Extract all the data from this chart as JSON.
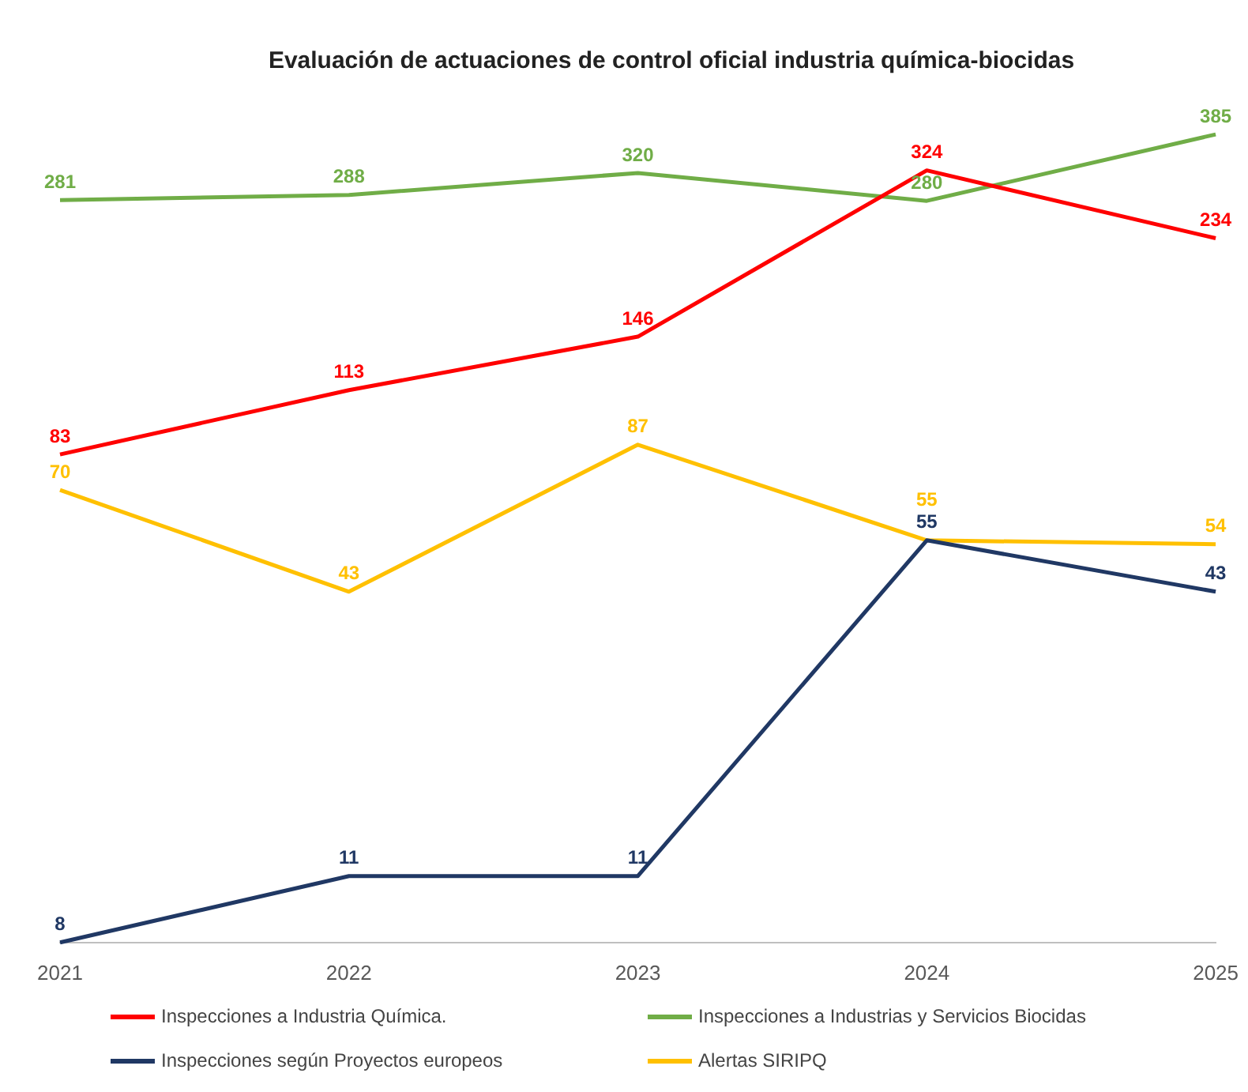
{
  "chart_data": {
    "type": "line",
    "title": "Evaluación de actuaciones de control oficial industria química-biocidas",
    "categories": [
      "2021",
      "2022",
      "2023",
      "2024",
      "2025"
    ],
    "series": [
      {
        "name": "Inspecciones a Industria Química.",
        "color": "#ff0000",
        "values": [
          83,
          113,
          146,
          324,
          234
        ]
      },
      {
        "name": "Inspecciones a Industrias y Servicios Biocidas",
        "color": "#70ad47",
        "values": [
          281,
          288,
          320,
          280,
          385
        ]
      },
      {
        "name": "Inspecciones según Proyectos europeos",
        "color": "#203864",
        "values": [
          8,
          11,
          11,
          55,
          43
        ]
      },
      {
        "name": "Alertas SIRIPQ",
        "color": "#ffc000",
        "values": [
          70,
          43,
          87,
          55,
          54
        ]
      }
    ],
    "log": "y",
    "data_labels": true,
    "marker": "none",
    "legend": "bottom",
    "line_style": "solid"
  }
}
